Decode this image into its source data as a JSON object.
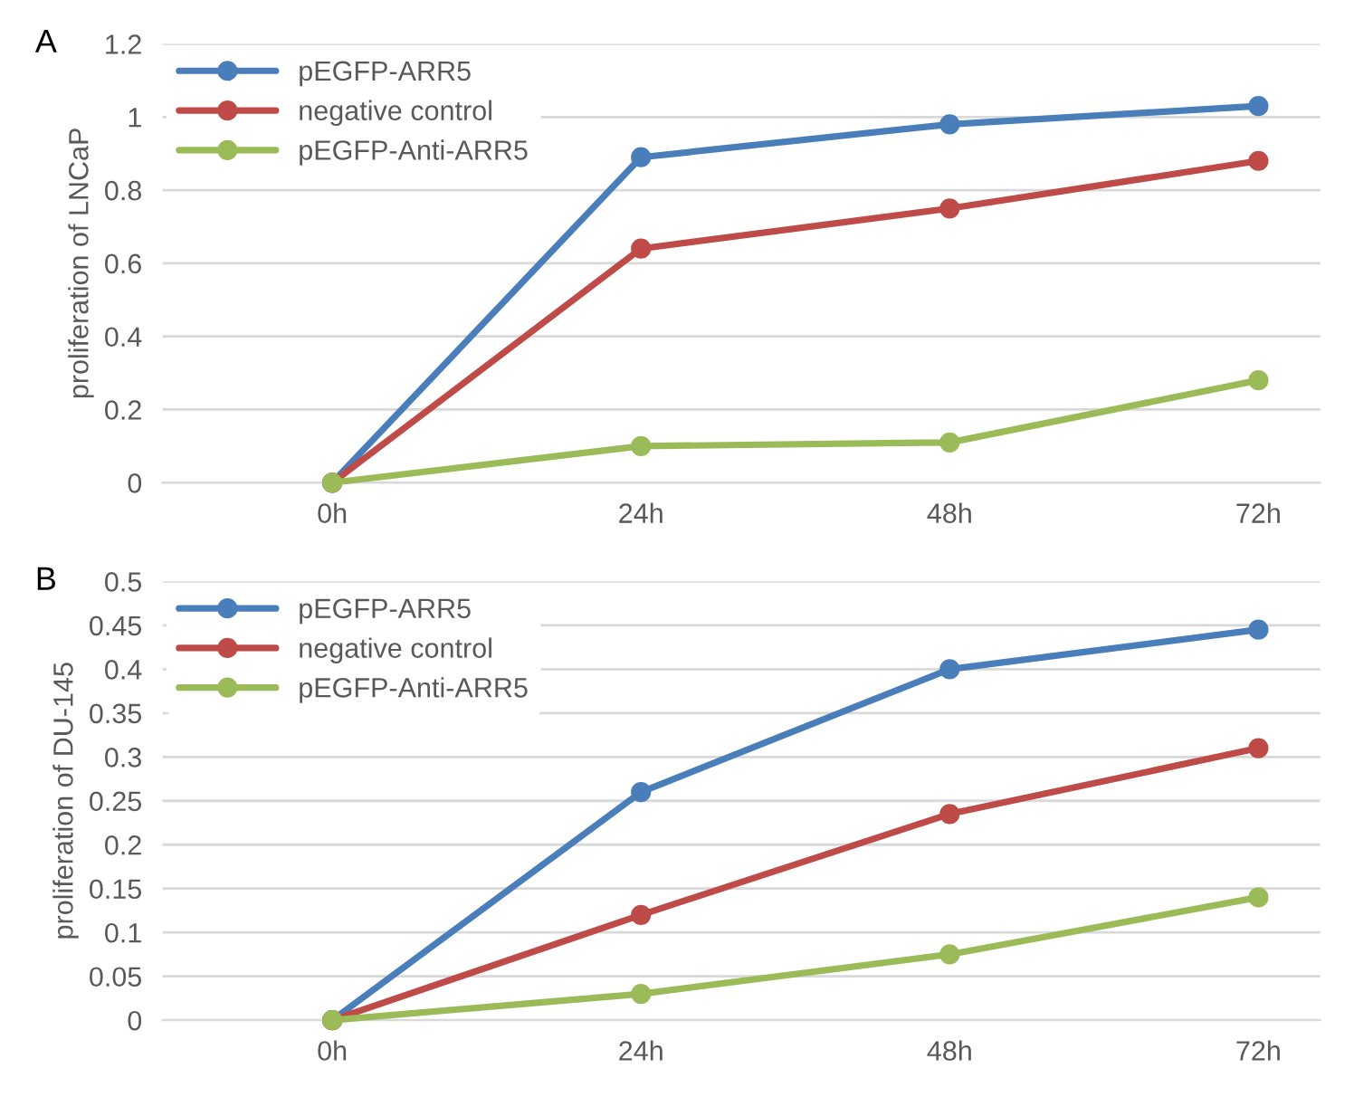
{
  "chart_data": [
    {
      "type": "line",
      "ylabel": "proliferation of LNCaP",
      "annotations": [
        "A"
      ],
      "categories": [
        "0h",
        "24h",
        "48h",
        "72h"
      ],
      "series": [
        {
          "name": "pEGFP-ARR5",
          "color": "#4a7ebb",
          "values": [
            0,
            0.89,
            0.98,
            1.03
          ]
        },
        {
          "name": "negative control",
          "color": "#be4b48",
          "values": [
            0,
            0.64,
            0.75,
            0.88
          ]
        },
        {
          "name": "pEGFP-Anti-ARR5",
          "color": "#9bbb59",
          "values": [
            0,
            0.1,
            0.11,
            0.28
          ]
        }
      ],
      "ylim": [
        0,
        1.2
      ],
      "yticks": [
        0,
        0.2,
        0.4,
        0.6,
        0.8,
        1,
        1.2
      ],
      "grid": "y",
      "legend": "top left",
      "marker": "circle",
      "line_style": "solid"
    },
    {
      "type": "line",
      "ylabel": "proliferation of DU-145",
      "annotations": [
        "B"
      ],
      "categories": [
        "0h",
        "24h",
        "48h",
        "72h"
      ],
      "series": [
        {
          "name": "pEGFP-ARR5",
          "color": "#4a7ebb",
          "values": [
            0,
            0.26,
            0.4,
            0.445
          ]
        },
        {
          "name": "negative control",
          "color": "#be4b48",
          "values": [
            0,
            0.12,
            0.235,
            0.31
          ]
        },
        {
          "name": "pEGFP-Anti-ARR5",
          "color": "#9bbb59",
          "values": [
            0,
            0.03,
            0.075,
            0.14
          ]
        }
      ],
      "ylim": [
        0,
        0.5
      ],
      "yticks": [
        0,
        0.05,
        0.1,
        0.15,
        0.2,
        0.25,
        0.3,
        0.35,
        0.4,
        0.45,
        0.5
      ],
      "grid": "y",
      "legend": "top left",
      "marker": "circle",
      "line_style": "solid"
    }
  ]
}
